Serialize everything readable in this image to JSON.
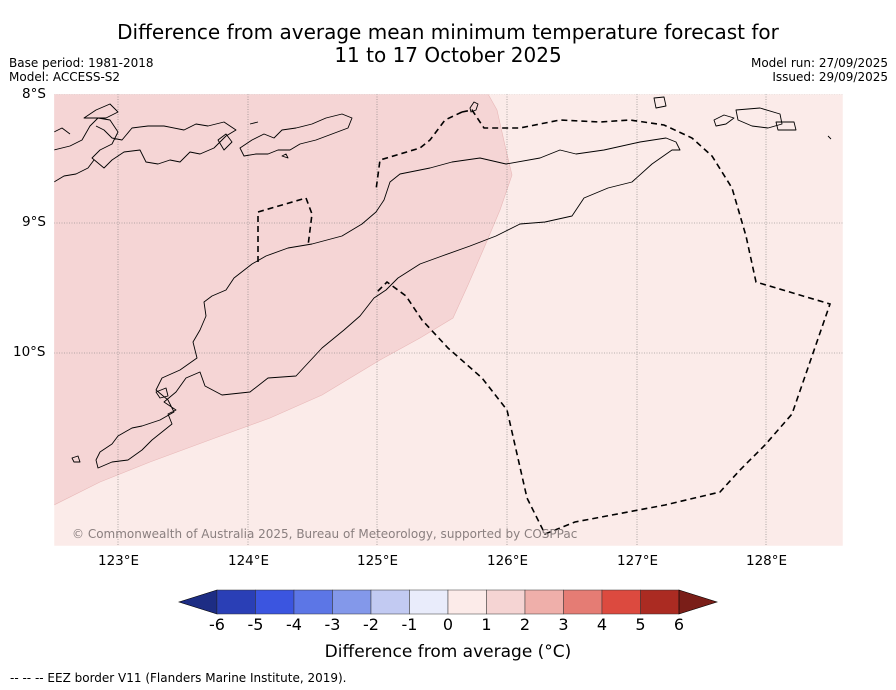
{
  "title_line1": "Difference from average mean minimum temperature forecast for",
  "title_line2": "11 to 17 October 2025",
  "base_period": "Base period: 1981-2018",
  "model": "Model: ACCESS-S2",
  "model_run": "Model run: 27/09/2025",
  "issued": "Issued: 29/09/2025",
  "lat_labels": [
    "8°S",
    "9°S",
    "10°S"
  ],
  "lon_labels": [
    "123°E",
    "124°E",
    "125°E",
    "126°E",
    "127°E",
    "128°E"
  ],
  "copyright": "© Commonwealth of Australia 2025, Bureau of Meteorology, supported by COSPPac",
  "colorbar": {
    "ticks": [
      "-6",
      "-5",
      "-4",
      "-3",
      "-2",
      "-1",
      "0",
      "1",
      "2",
      "3",
      "4",
      "5",
      "6"
    ],
    "colors": [
      "#1d2d84",
      "#2a3fb6",
      "#3b55e0",
      "#5c76e6",
      "#8398ea",
      "#c2caf2",
      "#e9ecfb",
      "#fcebe9",
      "#f5d4d3",
      "#efafaa",
      "#e57c74",
      "#dc4a3f",
      "#ab2b22",
      "#7a1e18"
    ],
    "label": "Difference from average (°C)"
  },
  "map_regions": [
    {
      "name": "region-1-to-2",
      "label": "1 to 2 °C",
      "color": "#f5d5d5"
    },
    {
      "name": "region-0-to-1",
      "label": "0 to 1 °C",
      "color": "#fbebe9"
    }
  ],
  "legend_note": "--  --  -- EEZ border V11 (Flanders Marine Institute, 2019)."
}
